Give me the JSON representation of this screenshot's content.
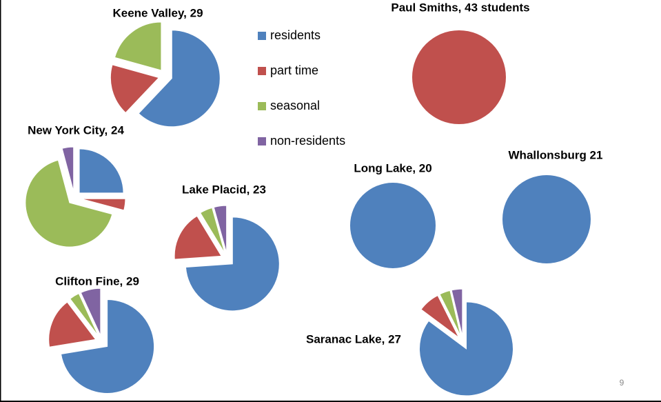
{
  "chart_data": [
    {
      "type": "pie",
      "title": "Keene Valley, 29",
      "categories": [
        "residents",
        "part time",
        "seasonal",
        "non-residents"
      ],
      "values": [
        18,
        5,
        6,
        0
      ],
      "colors": [
        "#4f81bd",
        "#c0504d",
        "#9bbb59",
        "#8064a2"
      ]
    },
    {
      "type": "pie",
      "title": "Paul Smiths, 43 students",
      "categories": [
        "residents",
        "part time",
        "seasonal",
        "non-residents"
      ],
      "values": [
        0,
        43,
        0,
        0
      ],
      "colors": [
        "#4f81bd",
        "#c0504d",
        "#9bbb59",
        "#8064a2"
      ]
    },
    {
      "type": "pie",
      "title": "New York City, 24",
      "categories": [
        "residents",
        "part time",
        "seasonal",
        "non-residents"
      ],
      "values": [
        6,
        1,
        16,
        1
      ],
      "colors": [
        "#4f81bd",
        "#c0504d",
        "#9bbb59",
        "#8064a2"
      ]
    },
    {
      "type": "pie",
      "title": "Lake Placid, 23",
      "categories": [
        "residents",
        "part time",
        "seasonal",
        "non-residents"
      ],
      "values": [
        17,
        4,
        1,
        1
      ],
      "colors": [
        "#4f81bd",
        "#c0504d",
        "#9bbb59",
        "#8064a2"
      ]
    },
    {
      "type": "pie",
      "title": "Long Lake, 20",
      "categories": [
        "residents",
        "part time",
        "seasonal",
        "non-residents"
      ],
      "values": [
        20,
        0,
        0,
        0
      ],
      "colors": [
        "#4f81bd",
        "#c0504d",
        "#9bbb59",
        "#8064a2"
      ]
    },
    {
      "type": "pie",
      "title": "Whallonsburg 21",
      "categories": [
        "residents",
        "part time",
        "seasonal",
        "non-residents"
      ],
      "values": [
        21,
        0,
        0,
        0
      ],
      "colors": [
        "#4f81bd",
        "#c0504d",
        "#9bbb59",
        "#8064a2"
      ]
    },
    {
      "type": "pie",
      "title": "Clifton Fine, 29",
      "categories": [
        "residents",
        "part time",
        "seasonal",
        "non-residents"
      ],
      "values": [
        21,
        5,
        1,
        2
      ],
      "colors": [
        "#4f81bd",
        "#c0504d",
        "#9bbb59",
        "#8064a2"
      ]
    },
    {
      "type": "pie",
      "title": "Saranac Lake, 27",
      "categories": [
        "residents",
        "part time",
        "seasonal",
        "non-residents"
      ],
      "values": [
        23,
        2,
        1,
        1
      ],
      "colors": [
        "#4f81bd",
        "#c0504d",
        "#9bbb59",
        "#8064a2"
      ]
    }
  ],
  "slide_number": 9
}
